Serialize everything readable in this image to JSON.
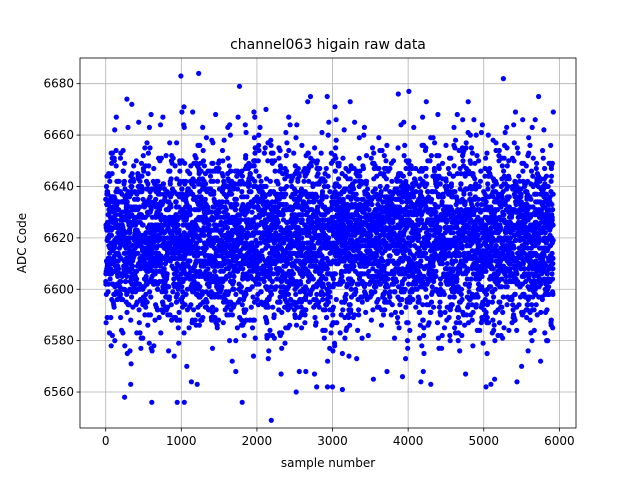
{
  "chart_data": {
    "type": "scatter",
    "title": "channel063 higain raw data",
    "xlabel": "sample number",
    "ylabel": "ADC Code",
    "xlim": [
      -340,
      6220
    ],
    "ylim": [
      6546,
      6690
    ],
    "xticks": [
      0,
      1000,
      2000,
      3000,
      4000,
      5000,
      6000
    ],
    "yticks": [
      6560,
      6580,
      6600,
      6620,
      6640,
      6660,
      6680
    ],
    "grid": true,
    "legend": "none",
    "marker_color": "#0000ff",
    "series": [
      {
        "n_points": 5920,
        "mean": 6619.5,
        "std_dev": 17,
        "x_range": [
          0,
          5919
        ],
        "points_extreme": [
          [
            1230,
            6684
          ],
          [
            995,
            6683
          ],
          [
            5260,
            6682
          ],
          [
            1770,
            6679
          ],
          [
            4010,
            6677
          ],
          [
            2930,
            6675
          ],
          [
            345,
            6672
          ],
          [
            5420,
            6669
          ],
          [
            5920,
            6669
          ],
          [
            2120,
            6670
          ],
          [
            4870,
            6666
          ],
          [
            2420,
            6667
          ],
          [
            600,
            6668
          ],
          [
            1640,
            6664
          ],
          [
            4650,
            6668
          ],
          [
            3870,
            6676
          ],
          [
            4240,
            6673
          ],
          [
            140,
            6667
          ],
          [
            1040,
            6663
          ],
          [
            5680,
            6666
          ],
          [
            2190,
            6549
          ],
          [
            1040,
            6556
          ],
          [
            945,
            6556
          ],
          [
            1805,
            6556
          ],
          [
            610,
            6556
          ],
          [
            250,
            6558
          ],
          [
            3130,
            6561
          ],
          [
            4300,
            6563
          ],
          [
            330,
            6563
          ],
          [
            1210,
            6563
          ],
          [
            2520,
            6560
          ],
          [
            2790,
            6562
          ],
          [
            3925,
            6566
          ],
          [
            1720,
            6568
          ],
          [
            4760,
            6567
          ],
          [
            5440,
            6564
          ],
          [
            3720,
            6568
          ],
          [
            2320,
            6567
          ],
          [
            5030,
            6562
          ],
          [
            2560,
            6568
          ]
        ]
      }
    ]
  }
}
